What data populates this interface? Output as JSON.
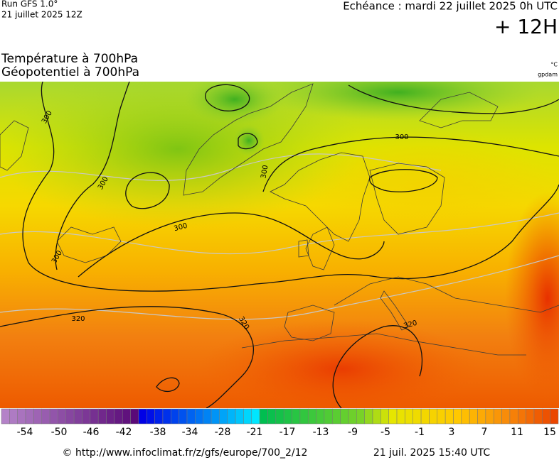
{
  "header": {
    "run": "Run GFS 1.0°",
    "run_date": "21 juillet 2025 12Z",
    "forecast": "Echéance : mardi 22 juillet 2025 0h UTC",
    "lead": "+ 12H"
  },
  "titles": {
    "line1": "Température à 700hPa",
    "line2": "Géopotentiel à 700hPa",
    "unit1": "°C",
    "unit2": "gpdam"
  },
  "contour_labels": [
    "300",
    "300",
    "300",
    "300",
    "300",
    "300",
    "320",
    "320",
    "320"
  ],
  "colorbar": {
    "ticks": [
      -54,
      -50,
      -46,
      -42,
      -38,
      -34,
      -28,
      -21,
      -17,
      -13,
      -9,
      -5,
      -1,
      3,
      7,
      11,
      15
    ]
  },
  "footer": {
    "source": "© http://www.infoclimat.fr/z/gfs/europe/700_2/12",
    "generated": "21 juil. 2025 15:40 UTC"
  }
}
